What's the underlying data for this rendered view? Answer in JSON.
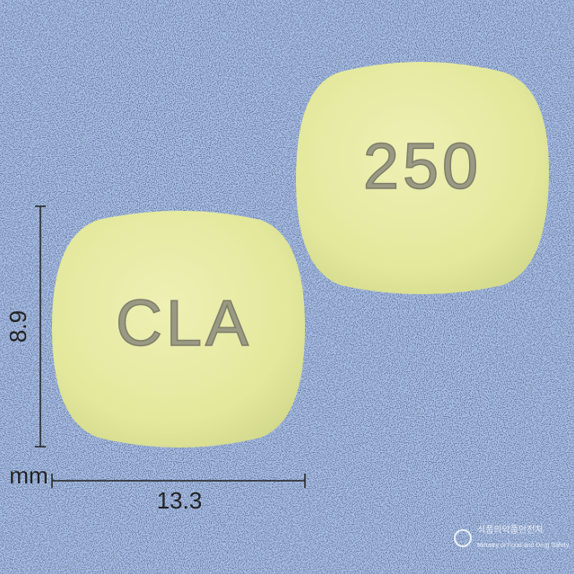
{
  "pills": [
    {
      "imprint": "CLA"
    },
    {
      "imprint": "250"
    }
  ],
  "dimensions": {
    "unit": "mm",
    "width": "13.3",
    "height": "8.9"
  },
  "watermark": {
    "korean": "식품의약품안전처",
    "english": "Ministry of Food and Drug Safety"
  }
}
